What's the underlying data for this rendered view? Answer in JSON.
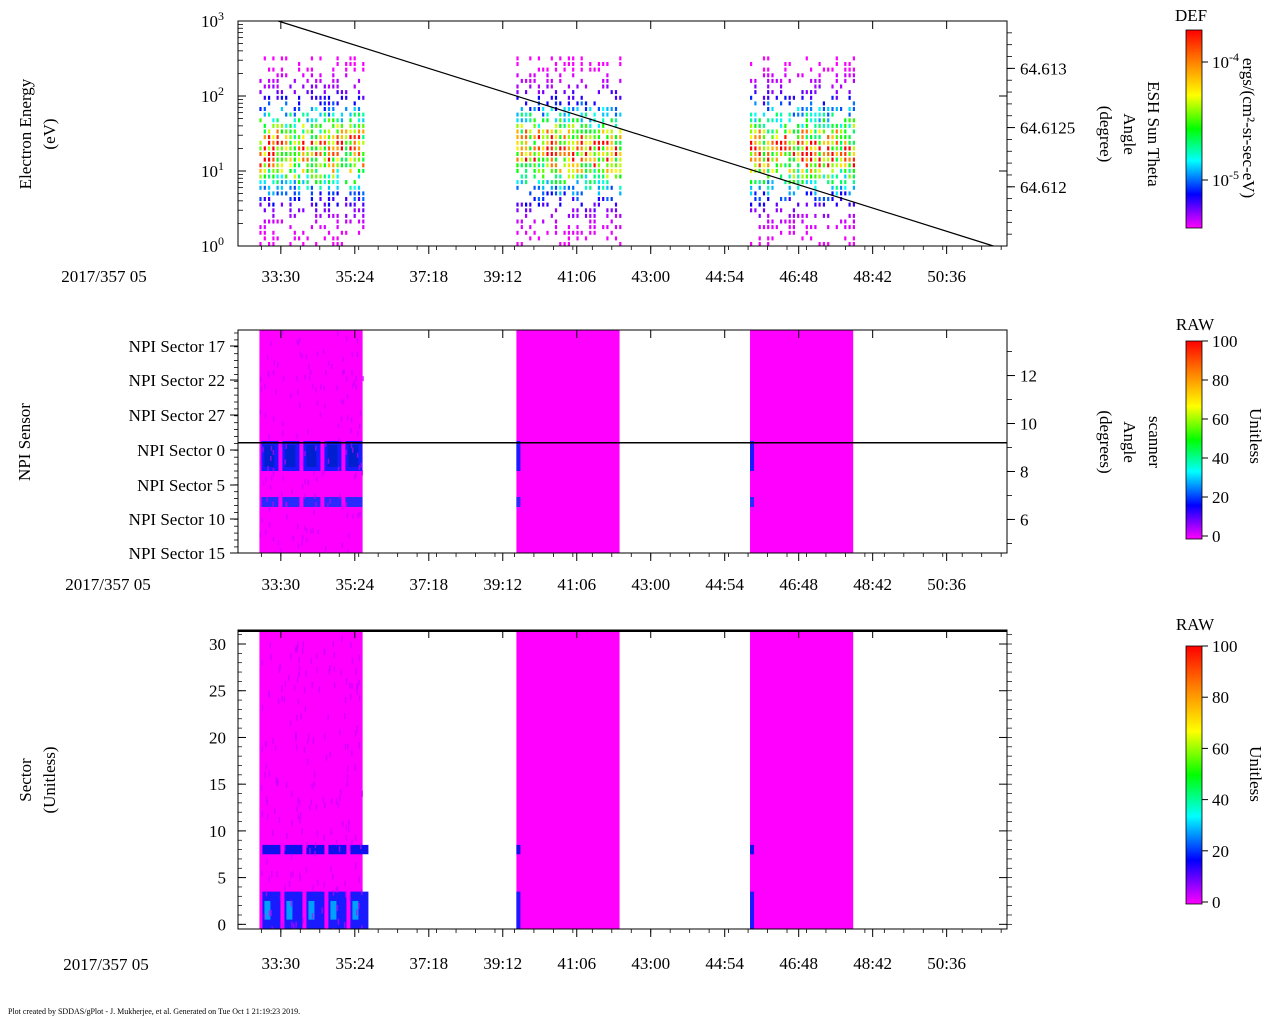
{
  "footer": "Plot created by SDDAS/gPlot - J. Mukherjee, et al.  Generated on Tue Oct  1 21:19:23 2019.",
  "colors": {
    "magenta": "#ff00ff",
    "line": "#000000"
  },
  "chart_data": [
    {
      "type": "heatmap",
      "id": "panel1",
      "title": "",
      "ylabel": [
        "Electron Energy",
        "(eV)"
      ],
      "y_scale": "log",
      "ylim": [
        1,
        1000
      ],
      "y_ticks": [
        {
          "exp": "0"
        },
        {
          "exp": "1"
        },
        {
          "exp": "2"
        },
        {
          "exp": "3"
        }
      ],
      "date_label": "2017/357 05",
      "x_tick_labels": [
        "33:30",
        "35:24",
        "37:18",
        "39:12",
        "41:06",
        "43:00",
        "44:54",
        "46:48",
        "48:42",
        "50:36"
      ],
      "data_blocks_min": [
        [
          32.95,
          35.6
        ],
        [
          39.55,
          42.2
        ],
        [
          45.55,
          48.2
        ]
      ],
      "right_axis": {
        "label": [
          "ESH Sun Theta",
          "Angle",
          "(degree)"
        ],
        "ticks": [
          "64.613",
          "64.6125",
          "64.612"
        ],
        "ylim": [
          64.6115,
          64.6134
        ],
        "line": {
          "x_min": [
            33.43,
            51.8
          ],
          "y": [
            64.6134,
            64.6115
          ]
        }
      },
      "colorbar": {
        "title": "DEF",
        "label": "ergs/(cm²-sr-sec-eV)",
        "ticks": [
          {
            "base": "10",
            "exp": "-4"
          },
          {
            "base": "10",
            "exp": "-5"
          }
        ]
      }
    },
    {
      "type": "heatmap",
      "id": "panel2",
      "ylabel": [
        "NPI Sensor"
      ],
      "y_categories": [
        "NPI Sector 17",
        "NPI Sector 22",
        "NPI Sector 27",
        "NPI Sector 0",
        "NPI Sector 5",
        "NPI Sector 10",
        "NPI Sector 15"
      ],
      "date_label": "2017/357 05",
      "x_tick_labels": [
        "33:30",
        "35:24",
        "37:18",
        "39:12",
        "41:06",
        "43:00",
        "44:54",
        "46:48",
        "48:42",
        "50:36"
      ],
      "data_blocks_min": [
        [
          32.95,
          35.6
        ],
        [
          39.55,
          42.2
        ],
        [
          45.55,
          48.2
        ]
      ],
      "right_axis": {
        "label": [
          "scanner",
          "Angle",
          "(degrees)"
        ],
        "ticks": [
          "12",
          "10",
          "8",
          "6"
        ],
        "ylim": [
          4.6,
          13.9
        ],
        "line": {
          "y": 9.2
        }
      },
      "colorbar": {
        "title": "RAW",
        "label": "Unitless",
        "ticks": [
          "100",
          "80",
          "60",
          "40",
          "20",
          "0"
        ]
      }
    },
    {
      "type": "heatmap",
      "id": "panel3",
      "ylabel": [
        "Sector",
        "(Unitless)"
      ],
      "ylim": [
        -0.5,
        31.5
      ],
      "y_tick_labels": [
        "0",
        "5",
        "10",
        "15",
        "20",
        "25",
        "30"
      ],
      "date_label": "2017/357 05",
      "x_tick_labels": [
        "33:30",
        "35:24",
        "37:18",
        "39:12",
        "41:06",
        "43:00",
        "44:54",
        "46:48",
        "48:42",
        "50:36"
      ],
      "data_blocks_min": [
        [
          32.95,
          35.6
        ],
        [
          39.55,
          42.2
        ],
        [
          45.55,
          48.2
        ]
      ],
      "colorbar": {
        "title": "RAW",
        "label": "Unitless",
        "ticks": [
          "100",
          "80",
          "60",
          "40",
          "20",
          "0"
        ]
      }
    }
  ]
}
